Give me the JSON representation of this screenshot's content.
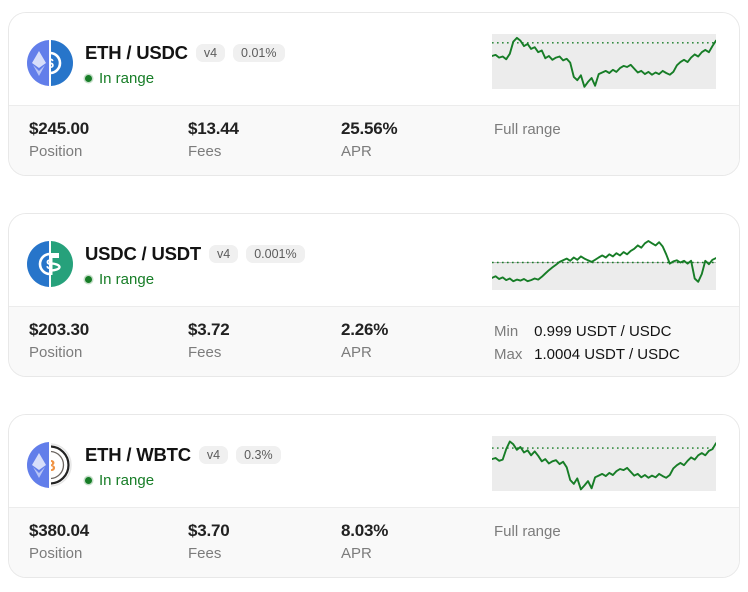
{
  "colors": {
    "accent_green": "#177d27",
    "chart_band_gray": "#ececec",
    "card_border": "#e8e8e8",
    "card_bottom_bg": "#f9f9f9",
    "badge_bg": "#f0f0f0",
    "muted_text": "#7c7c7c",
    "eth_brand": "#627eea",
    "usdc_brand": "#2775ca",
    "usdt_brand": "#26a17b",
    "wbtc_orange": "#f09242"
  },
  "cards": [
    {
      "pair": "ETH / USDC",
      "tokens": [
        "ETH",
        "USDC"
      ],
      "badges": {
        "version": "v4",
        "fee": "0.01%"
      },
      "status": "In range",
      "stats": {
        "position": {
          "value": "$245.00",
          "label": "Position"
        },
        "fees": {
          "value": "$13.44",
          "label": "Fees"
        },
        "apr": {
          "value": "25.56%",
          "label": "APR"
        }
      },
      "range": {
        "type": "full",
        "text": "Full range"
      },
      "chart_data": {
        "type": "line",
        "description": "price sparkline with dotted max-range line",
        "line_color": "#177d27",
        "band_color": "#ececec",
        "band_y_pct": [
          0,
          100
        ],
        "band_top_border": false,
        "dotted_line_y_pct": 16,
        "points_y_pct": [
          40,
          38,
          43,
          41,
          46,
          36,
          14,
          7,
          12,
          22,
          18,
          27,
          24,
          33,
          30,
          44,
          40,
          47,
          43,
          41,
          48,
          45,
          52,
          78,
          84,
          75,
          96,
          87,
          80,
          94,
          73,
          70,
          67,
          71,
          65,
          69,
          62,
          58,
          60,
          56,
          63,
          70,
          67,
          73,
          69,
          74,
          70,
          73,
          67,
          71,
          74,
          69,
          57,
          51,
          47,
          51,
          43,
          37,
          41,
          33,
          29,
          33,
          22,
          12
        ]
      }
    },
    {
      "pair": "USDC / USDT",
      "tokens": [
        "USDC",
        "USDT"
      ],
      "badges": {
        "version": "v4",
        "fee": "0.001%"
      },
      "status": "In range",
      "stats": {
        "position": {
          "value": "$203.30",
          "label": "Position"
        },
        "fees": {
          "value": "$3.72",
          "label": "Fees"
        },
        "apr": {
          "value": "2.26%",
          "label": "APR"
        }
      },
      "range": {
        "type": "minmax",
        "min_label": "Min",
        "min_value": "0.999 USDT / USDC",
        "max_label": "Max",
        "max_value": "1.0004 USDT / USDC"
      },
      "chart_data": {
        "type": "line",
        "description": "price sparkline, band covers lower half below max line",
        "line_color": "#177d27",
        "band_color": "#ececec",
        "band_y_pct": [
          50,
          100
        ],
        "band_top_border": true,
        "dotted_line_y_pct": 50,
        "points_y_pct": [
          78,
          75,
          80,
          77,
          82,
          79,
          84,
          81,
          83,
          80,
          84,
          82,
          79,
          81,
          76,
          70,
          64,
          59,
          54,
          49,
          46,
          43,
          47,
          41,
          45,
          39,
          43,
          46,
          49,
          45,
          41,
          37,
          41,
          35,
          39,
          33,
          37,
          31,
          35,
          29,
          25,
          19,
          23,
          15,
          11,
          15,
          19,
          13,
          21,
          35,
          52,
          48,
          46,
          50,
          47,
          52,
          47,
          79,
          85,
          71,
          47,
          53,
          45,
          42
        ]
      }
    },
    {
      "pair": "ETH / WBTC",
      "tokens": [
        "ETH",
        "WBTC"
      ],
      "badges": {
        "version": "v4",
        "fee": "0.3%"
      },
      "status": "In range",
      "stats": {
        "position": {
          "value": "$380.04",
          "label": "Position"
        },
        "fees": {
          "value": "$3.70",
          "label": "Fees"
        },
        "apr": {
          "value": "8.03%",
          "label": "APR"
        }
      },
      "range": {
        "type": "full",
        "text": "Full range"
      },
      "chart_data": {
        "type": "line",
        "description": "price sparkline with dotted max-range line",
        "line_color": "#177d27",
        "band_color": "#ececec",
        "band_y_pct": [
          0,
          100
        ],
        "band_top_border": false,
        "dotted_line_y_pct": 22,
        "points_y_pct": [
          42,
          40,
          45,
          43,
          24,
          10,
          15,
          25,
          20,
          30,
          26,
          35,
          28,
          36,
          46,
          42,
          50,
          46,
          44,
          51,
          47,
          57,
          80,
          87,
          77,
          97,
          90,
          82,
          95,
          75,
          72,
          69,
          73,
          67,
          71,
          64,
          60,
          62,
          58,
          65,
          72,
          69,
          75,
          71,
          76,
          72,
          75,
          69,
          73,
          76,
          71,
          59,
          53,
          49,
          53,
          45,
          39,
          43,
          35,
          31,
          35,
          27,
          24,
          13
        ]
      }
    }
  ]
}
